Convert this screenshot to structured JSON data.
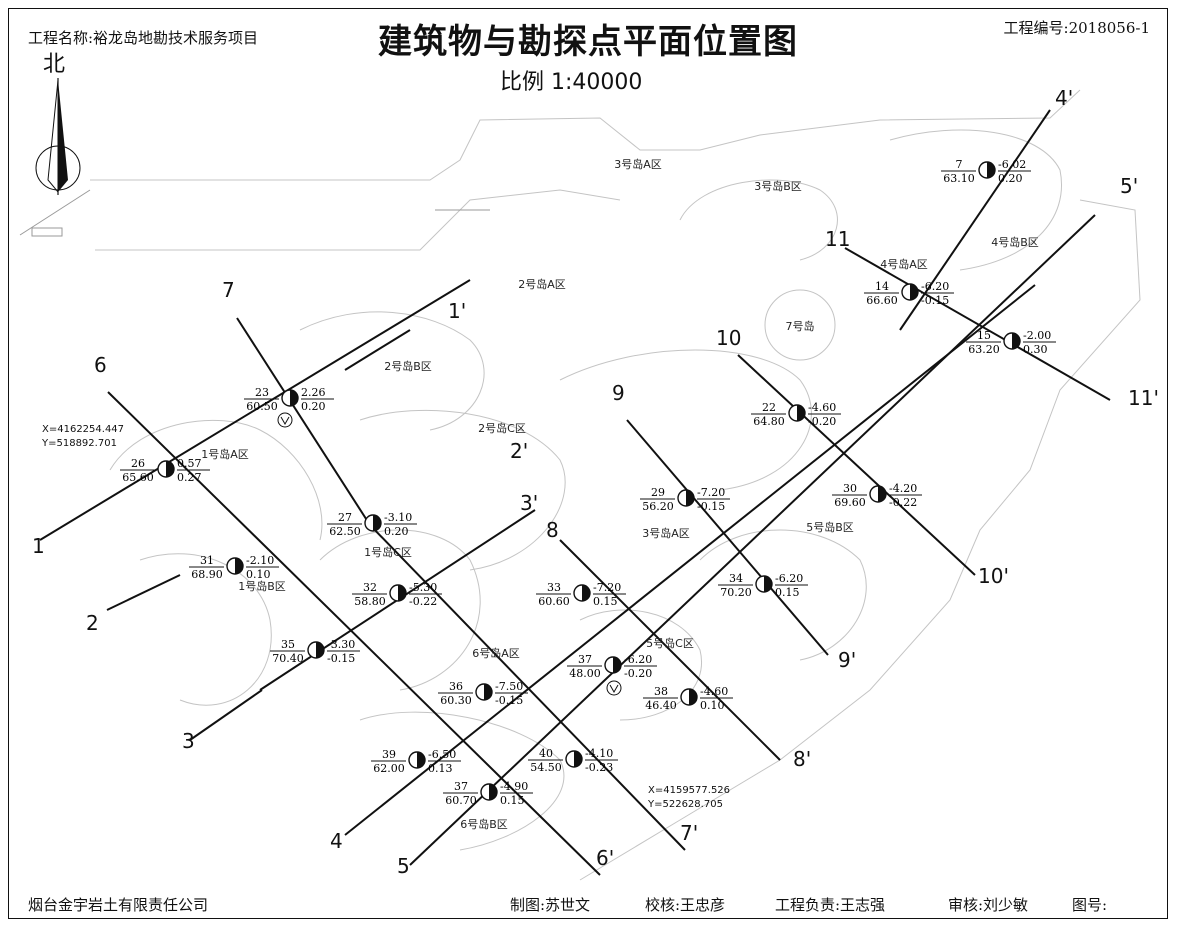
{
  "header": {
    "project_name": "工程名称:裕龙岛地勘技术服务项目",
    "title": "建筑物与勘探点平面位置图",
    "scale": "比例  1:40000",
    "project_no": "工程编号:2018056-1",
    "north": "北"
  },
  "footer": {
    "company": "烟台金宇岩土有限责任公司",
    "drawn": "制图:苏世文",
    "checked": "校核:王忠彦",
    "chief": "工程负责:王志强",
    "reviewed": "审核:刘少敏",
    "drawing_no": "图号:"
  },
  "coords": {
    "top_left_x": "X=4162254.447",
    "top_left_y": "Y=518892.701",
    "bottom_right_x": "X=4159577.526",
    "bottom_right_y": "Y=522628.705"
  },
  "area_labels": [
    "3号岛A区",
    "3号岛B区",
    "4号岛B区",
    "2号岛A区",
    "4号岛A区",
    "7号岛",
    "2号岛B区",
    "2号岛C区",
    "1号岛A区",
    "1号岛C区",
    "1号岛B区",
    "3号岛A区",
    "5号岛B区",
    "5号岛C区",
    "6号岛A区",
    "6号岛B区"
  ],
  "section_labels": [
    "7",
    "6",
    "1",
    "2",
    "3",
    "4",
    "5",
    "1'",
    "2'",
    "3'",
    "4'",
    "5'",
    "11",
    "10",
    "9",
    "8",
    "11'",
    "10'",
    "9'",
    "8'",
    "7'",
    "6'"
  ],
  "points": [
    {
      "id": "7",
      "depth": "63.10",
      "elev": "-6.02",
      "s": "0.20"
    },
    {
      "id": "14",
      "depth": "66.60",
      "elev": "-6.20",
      "s": "-0.15"
    },
    {
      "id": "15",
      "depth": "63.20",
      "elev": "-2.00",
      "s": "0.30"
    },
    {
      "id": "22",
      "depth": "64.80",
      "elev": "-4.60",
      "s": "-0.20"
    },
    {
      "id": "23",
      "depth": "60.50",
      "elev": "2.26",
      "s": "0.20"
    },
    {
      "id": "26",
      "depth": "65.60",
      "elev": "0.57",
      "s": "0.27"
    },
    {
      "id": "27",
      "depth": "62.50",
      "elev": "-3.10",
      "s": "0.20"
    },
    {
      "id": "29",
      "depth": "56.20",
      "elev": "-7.20",
      "s": "-0.15"
    },
    {
      "id": "30",
      "depth": "69.60",
      "elev": "-4.20",
      "s": "-0.22"
    },
    {
      "id": "31",
      "depth": "68.90",
      "elev": "-2.10",
      "s": "0.10"
    },
    {
      "id": "32",
      "depth": "58.80",
      "elev": "-5.30",
      "s": "-0.22"
    },
    {
      "id": "33",
      "depth": "60.60",
      "elev": "-7.20",
      "s": "0.15"
    },
    {
      "id": "34",
      "depth": "70.20",
      "elev": "-6.20",
      "s": "0.15"
    },
    {
      "id": "35",
      "depth": "70.40",
      "elev": "-3.30",
      "s": "-0.15"
    },
    {
      "id": "36",
      "depth": "60.30",
      "elev": "-7.50",
      "s": "-0.15"
    },
    {
      "id": "37",
      "depth": "48.00",
      "elev": "-6.20",
      "s": "-0.20"
    },
    {
      "id": "38",
      "depth": "46.40",
      "elev": "-4.60",
      "s": "0.10"
    },
    {
      "id": "39",
      "depth": "62.00",
      "elev": "-6.50",
      "s": "0.13"
    },
    {
      "id": "40",
      "depth": "54.50",
      "elev": "-4.10",
      "s": "-0.23"
    },
    {
      "id": "37",
      "depth": "60.70",
      "elev": "-4.90",
      "s": "0.15"
    }
  ]
}
